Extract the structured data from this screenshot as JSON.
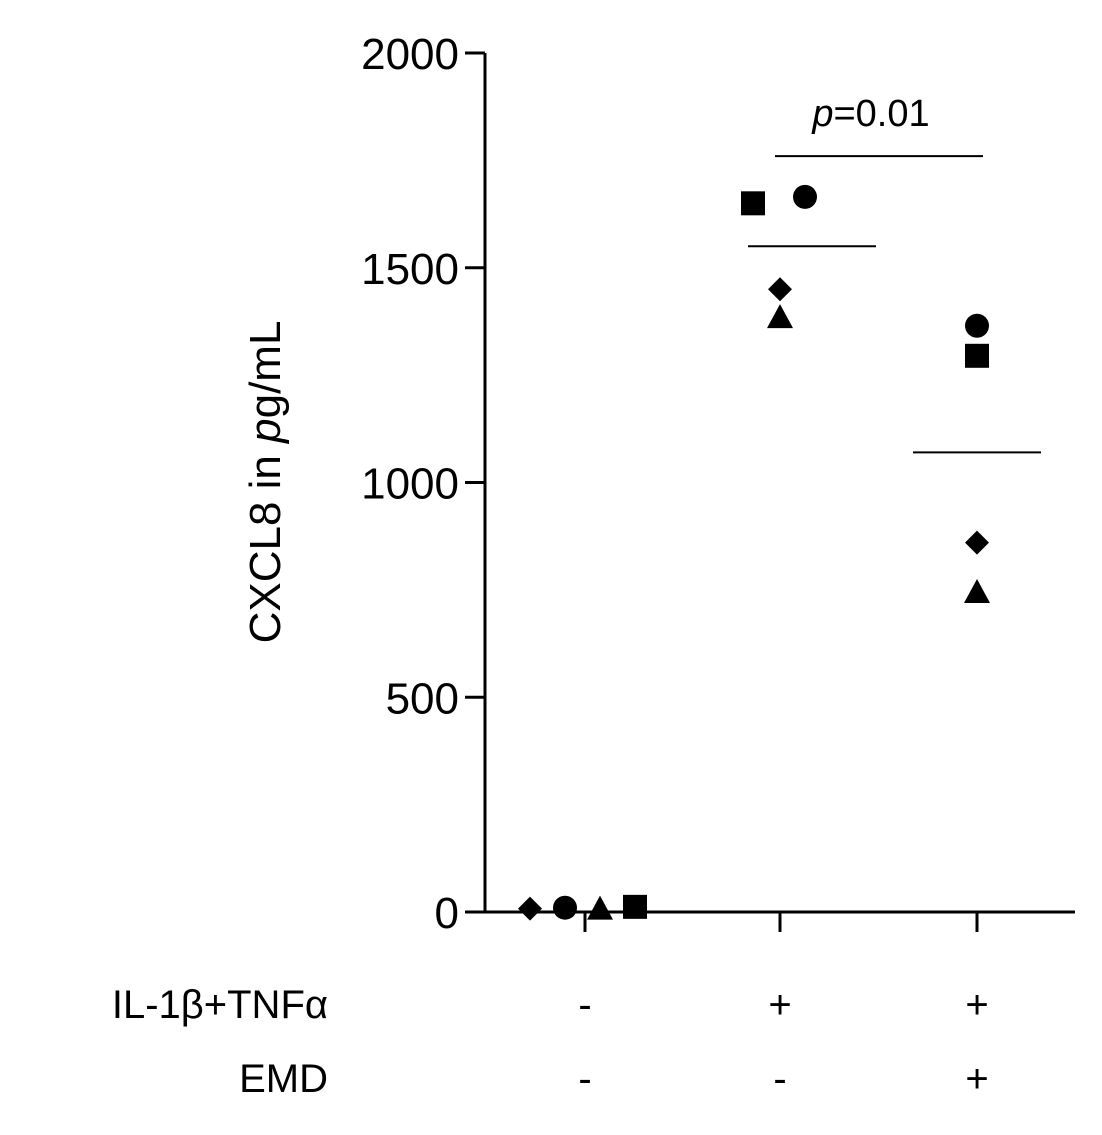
{
  "chart_data": {
    "type": "scatter",
    "ylabel": {
      "prefix": "CXCL8 in ",
      "italic": "p",
      "suffix": "g/mL"
    },
    "ylim": [
      0,
      2000
    ],
    "yticks": [
      0,
      500,
      1000,
      1500,
      2000
    ],
    "yticklabels": [
      "0",
      "500",
      "1000",
      "1500",
      "2000"
    ],
    "grid": false,
    "groups": [
      {
        "id": "control",
        "conditions": [
          "-",
          "-"
        ],
        "mean": 10,
        "points": [
          {
            "marker": "diamond",
            "y": 8
          },
          {
            "marker": "circle",
            "y": 10
          },
          {
            "marker": "triangle",
            "y": 8
          },
          {
            "marker": "square",
            "y": 12
          }
        ]
      },
      {
        "id": "il1b-tnfa",
        "conditions": [
          "+",
          "-"
        ],
        "mean": 1550,
        "points": [
          {
            "marker": "square",
            "y": 1650
          },
          {
            "marker": "circle",
            "y": 1665
          },
          {
            "marker": "diamond",
            "y": 1450
          },
          {
            "marker": "triangle",
            "y": 1385
          }
        ]
      },
      {
        "id": "il1b-tnfa-emd",
        "conditions": [
          "+",
          "+"
        ],
        "mean": 1070,
        "points": [
          {
            "marker": "circle",
            "y": 1365
          },
          {
            "marker": "square",
            "y": 1295
          },
          {
            "marker": "diamond",
            "y": 860
          },
          {
            "marker": "triangle",
            "y": 745
          }
        ]
      }
    ],
    "condition_rows": [
      {
        "id": "il1b-tnfa",
        "label": "IL-1β+TNFα"
      },
      {
        "id": "emd",
        "label": "EMD"
      }
    ],
    "annotations": [
      {
        "between": [
          1,
          2
        ],
        "y": 1760,
        "italic": "p",
        "text": "=0.01"
      }
    ]
  }
}
